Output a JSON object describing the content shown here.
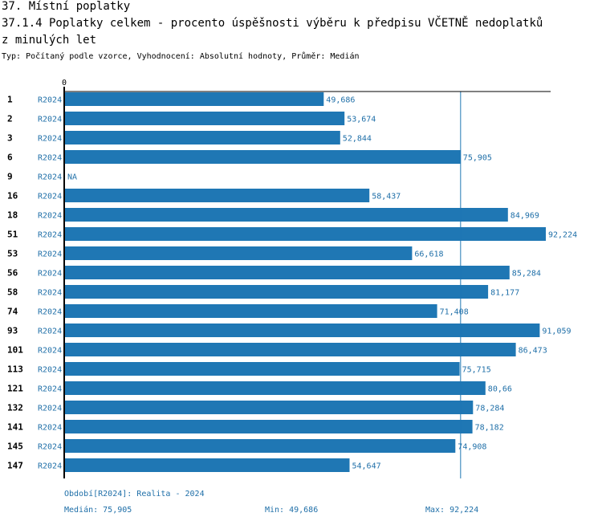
{
  "header": {
    "title": "37. Místní poplatky",
    "subtitle_line1": "37.1.4 Poplatky celkem - procento úspěšnosti výběru k předpisu VČETNĚ nedoplatků",
    "subtitle_line2": "z minulých let",
    "type_line": "Typ: Počítaný podle vzorce, Vyhodnocení: Absolutní hodnoty, Průměr: Medián"
  },
  "colors": {
    "bar": "#1f77b4",
    "label": "#1f6fa8",
    "axis": "#000000"
  },
  "chart_data": {
    "type": "bar",
    "orientation": "horizontal",
    "axis_start_label": "0",
    "period_label": "R2024",
    "categories": [
      "1",
      "2",
      "3",
      "6",
      "9",
      "16",
      "18",
      "51",
      "53",
      "56",
      "58",
      "74",
      "93",
      "101",
      "113",
      "121",
      "132",
      "141",
      "145",
      "147"
    ],
    "values": [
      49.686,
      53.674,
      52.844,
      75.905,
      null,
      58.437,
      84.969,
      92.224,
      66.618,
      85.284,
      81.177,
      71.408,
      91.059,
      86.473,
      75.715,
      80.66,
      78.284,
      78.182,
      74.908,
      54.647
    ],
    "value_labels": [
      "49,686",
      "53,674",
      "52,844",
      "75,905",
      "NA",
      "58,437",
      "84,969",
      "92,224",
      "66,618",
      "85,284",
      "81,177",
      "71,408",
      "91,059",
      "86,473",
      "75,715",
      "80,66",
      "78,284",
      "78,182",
      "74,908",
      "54,647"
    ],
    "median": 75.905,
    "xlim": [
      0,
      92.224
    ]
  },
  "footer": {
    "period": "Období[R2024]: Realita - 2024",
    "median": "Medián: 75,905",
    "min": "Min: 49,686",
    "max": "Max: 92,224"
  }
}
